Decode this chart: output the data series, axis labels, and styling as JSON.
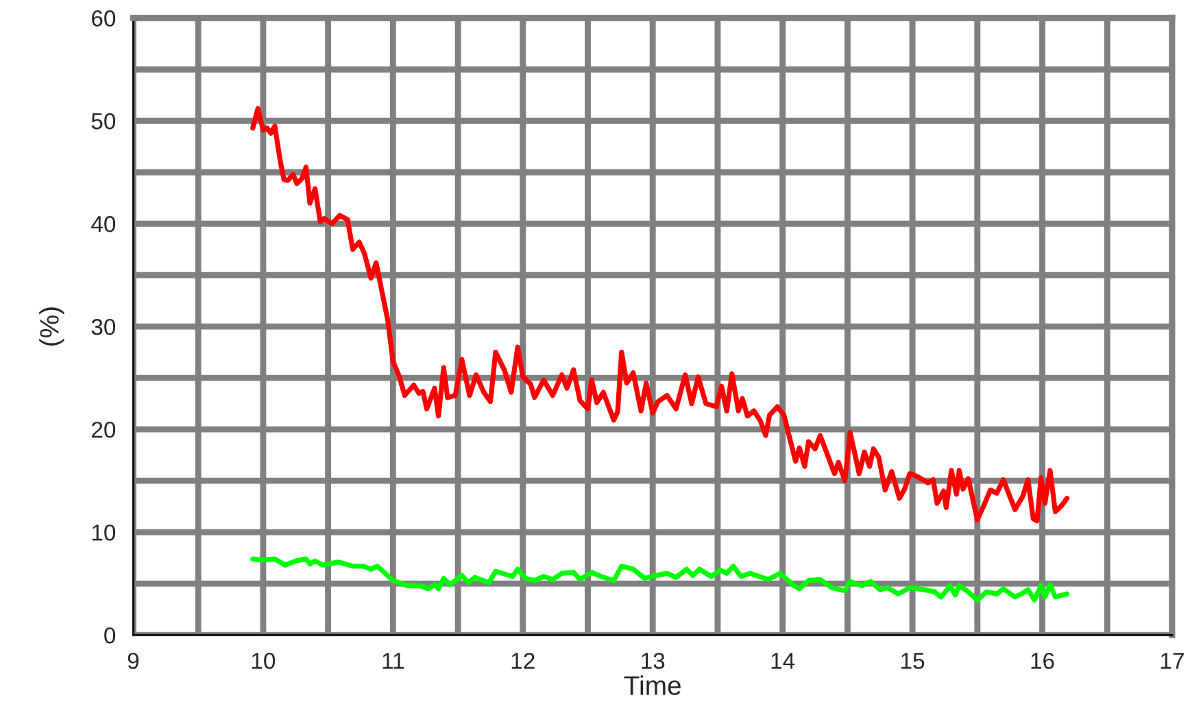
{
  "chart_data": {
    "type": "line",
    "xlabel": "Time",
    "ylabel": "(%)",
    "xlim": [
      9,
      17
    ],
    "xticks": [
      9,
      {
        "value": 9.5,
        "label": null
      },
      10,
      {
        "value": 10.5,
        "label": null
      },
      11,
      {
        "value": 11.5,
        "label": null
      },
      12,
      {
        "value": 12.5,
        "label": null
      },
      13,
      {
        "value": 13.5,
        "label": null
      },
      14,
      {
        "value": 14.5,
        "label": null
      },
      15,
      {
        "value": 15.5,
        "label": null
      },
      16,
      {
        "value": 16.5,
        "label": null
      },
      17
    ],
    "ylim": [
      0,
      60
    ],
    "yticks": [
      0,
      {
        "value": 5,
        "label": null
      },
      10,
      {
        "value": 15,
        "label": null
      },
      20,
      {
        "value": 25,
        "label": null
      },
      30,
      {
        "value": 35,
        "label": null
      },
      40,
      {
        "value": 45,
        "label": null
      },
      50,
      {
        "value": 55,
        "label": null
      },
      60
    ],
    "grid": true,
    "line_style": "solid",
    "series": [
      {
        "color": "#ff0000",
        "x": [
          9.92,
          9.96,
          10.0,
          10.03,
          10.06,
          10.09,
          10.13,
          10.16,
          10.19,
          10.23,
          10.26,
          10.3,
          10.33,
          10.36,
          10.4,
          10.44,
          10.47,
          10.53,
          10.59,
          10.65,
          10.69,
          10.74,
          10.78,
          10.83,
          10.87,
          10.91,
          10.96,
          11.0,
          11.05,
          11.09,
          11.16,
          11.2,
          11.23,
          11.26,
          11.32,
          11.35,
          11.39,
          11.42,
          11.48,
          11.53,
          11.59,
          11.64,
          11.7,
          11.75,
          11.79,
          11.86,
          11.91,
          11.96,
          12.0,
          12.06,
          12.09,
          12.16,
          12.23,
          12.3,
          12.34,
          12.39,
          12.44,
          12.5,
          12.53,
          12.57,
          12.62,
          12.7,
          12.73,
          12.76,
          12.8,
          12.85,
          12.91,
          12.95,
          13.0,
          13.04,
          13.11,
          13.18,
          13.25,
          13.3,
          13.35,
          13.41,
          13.49,
          13.53,
          13.57,
          13.61,
          13.66,
          13.69,
          13.73,
          13.78,
          13.83,
          13.87,
          13.9,
          13.96,
          14.01,
          14.1,
          14.13,
          14.17,
          14.2,
          14.25,
          14.29,
          14.4,
          14.43,
          14.48,
          14.52,
          14.59,
          14.63,
          14.67,
          14.7,
          14.74,
          14.79,
          14.84,
          14.9,
          14.94,
          14.98,
          15.04,
          15.12,
          15.16,
          15.19,
          15.24,
          15.26,
          15.3,
          15.34,
          15.36,
          15.39,
          15.43,
          15.5,
          15.55,
          15.6,
          15.65,
          15.7,
          15.74,
          15.79,
          15.85,
          15.89,
          15.93,
          15.96,
          15.99,
          16.02,
          16.06,
          16.1,
          16.15,
          16.19
        ],
        "values": [
          49.3,
          51.2,
          49.1,
          49.3,
          48.8,
          49.5,
          46.2,
          44.3,
          44.2,
          44.8,
          43.9,
          44.4,
          45.5,
          42.0,
          43.4,
          40.2,
          40.5,
          40.0,
          40.8,
          40.4,
          37.5,
          38.2,
          37.1,
          34.7,
          36.2,
          33.7,
          30.6,
          26.6,
          25.1,
          23.3,
          24.3,
          23.5,
          23.7,
          22.0,
          24.0,
          21.3,
          26.0,
          23.1,
          23.3,
          26.8,
          23.3,
          25.3,
          23.6,
          22.7,
          27.5,
          25.7,
          23.6,
          28.0,
          25.1,
          24.4,
          23.1,
          24.8,
          23.3,
          25.3,
          24.0,
          25.8,
          22.8,
          22.0,
          24.8,
          22.6,
          23.6,
          20.9,
          21.7,
          27.5,
          24.5,
          25.5,
          21.8,
          24.5,
          21.6,
          22.7,
          23.3,
          22.0,
          25.3,
          22.5,
          25.1,
          22.5,
          22.2,
          24.2,
          21.8,
          25.4,
          21.8,
          23.0,
          21.3,
          21.8,
          20.8,
          19.4,
          21.4,
          22.2,
          21.4,
          16.9,
          18.2,
          16.4,
          18.8,
          18.1,
          19.4,
          15.7,
          16.8,
          15.0,
          19.7,
          15.7,
          17.8,
          16.4,
          18.1,
          17.3,
          14.1,
          15.9,
          13.3,
          14.2,
          15.7,
          15.4,
          14.8,
          15.1,
          12.8,
          14.0,
          12.4,
          16.0,
          13.7,
          16.0,
          14.2,
          15.2,
          11.2,
          12.6,
          14.1,
          13.8,
          15.1,
          13.8,
          12.2,
          13.5,
          15.1,
          11.3,
          11.1,
          15.3,
          12.8,
          16.0,
          12.0,
          12.6,
          13.3
        ]
      },
      {
        "color": "#00ff00",
        "x": [
          9.92,
          9.98,
          10.09,
          10.17,
          10.25,
          10.33,
          10.36,
          10.4,
          10.46,
          10.58,
          10.69,
          10.77,
          10.83,
          10.88,
          11.0,
          11.11,
          11.21,
          11.27,
          11.32,
          11.35,
          11.39,
          11.44,
          11.53,
          11.58,
          11.63,
          11.74,
          11.79,
          11.92,
          11.96,
          12.02,
          12.09,
          12.16,
          12.23,
          12.3,
          12.39,
          12.44,
          12.53,
          12.6,
          12.7,
          12.76,
          12.85,
          12.94,
          12.99,
          13.11,
          13.18,
          13.26,
          13.31,
          13.36,
          13.45,
          13.52,
          13.57,
          13.62,
          13.68,
          13.75,
          13.82,
          13.89,
          13.98,
          14.09,
          14.13,
          14.2,
          14.29,
          14.38,
          14.48,
          14.52,
          14.61,
          14.68,
          14.75,
          14.81,
          14.89,
          14.98,
          15.1,
          15.17,
          15.22,
          15.26,
          15.29,
          15.33,
          15.36,
          15.42,
          15.5,
          15.57,
          15.65,
          15.7,
          15.79,
          15.84,
          15.89,
          15.94,
          15.99,
          16.02,
          16.06,
          16.1,
          16.19
        ],
        "values": [
          7.4,
          7.3,
          7.4,
          6.8,
          7.2,
          7.4,
          6.9,
          7.2,
          6.8,
          7.1,
          6.7,
          6.7,
          6.4,
          6.7,
          5.3,
          4.8,
          4.8,
          4.5,
          4.9,
          4.5,
          5.5,
          4.9,
          5.8,
          5.1,
          5.6,
          5.1,
          6.2,
          5.7,
          6.4,
          5.5,
          5.3,
          5.7,
          5.4,
          6.0,
          6.1,
          5.4,
          6.1,
          5.7,
          5.3,
          6.7,
          6.4,
          5.5,
          5.7,
          6.0,
          5.6,
          6.4,
          5.8,
          6.4,
          5.7,
          6.3,
          6.0,
          6.7,
          5.7,
          6.0,
          5.7,
          5.4,
          6.0,
          4.8,
          4.5,
          5.3,
          5.4,
          4.6,
          4.3,
          5.2,
          4.8,
          5.2,
          4.4,
          4.6,
          4.0,
          4.6,
          4.4,
          4.2,
          3.7,
          4.3,
          4.8,
          3.9,
          4.8,
          4.3,
          3.4,
          4.2,
          4.0,
          4.5,
          3.7,
          4.0,
          4.4,
          3.4,
          4.8,
          3.7,
          4.9,
          3.7,
          4.0
        ]
      }
    ]
  }
}
